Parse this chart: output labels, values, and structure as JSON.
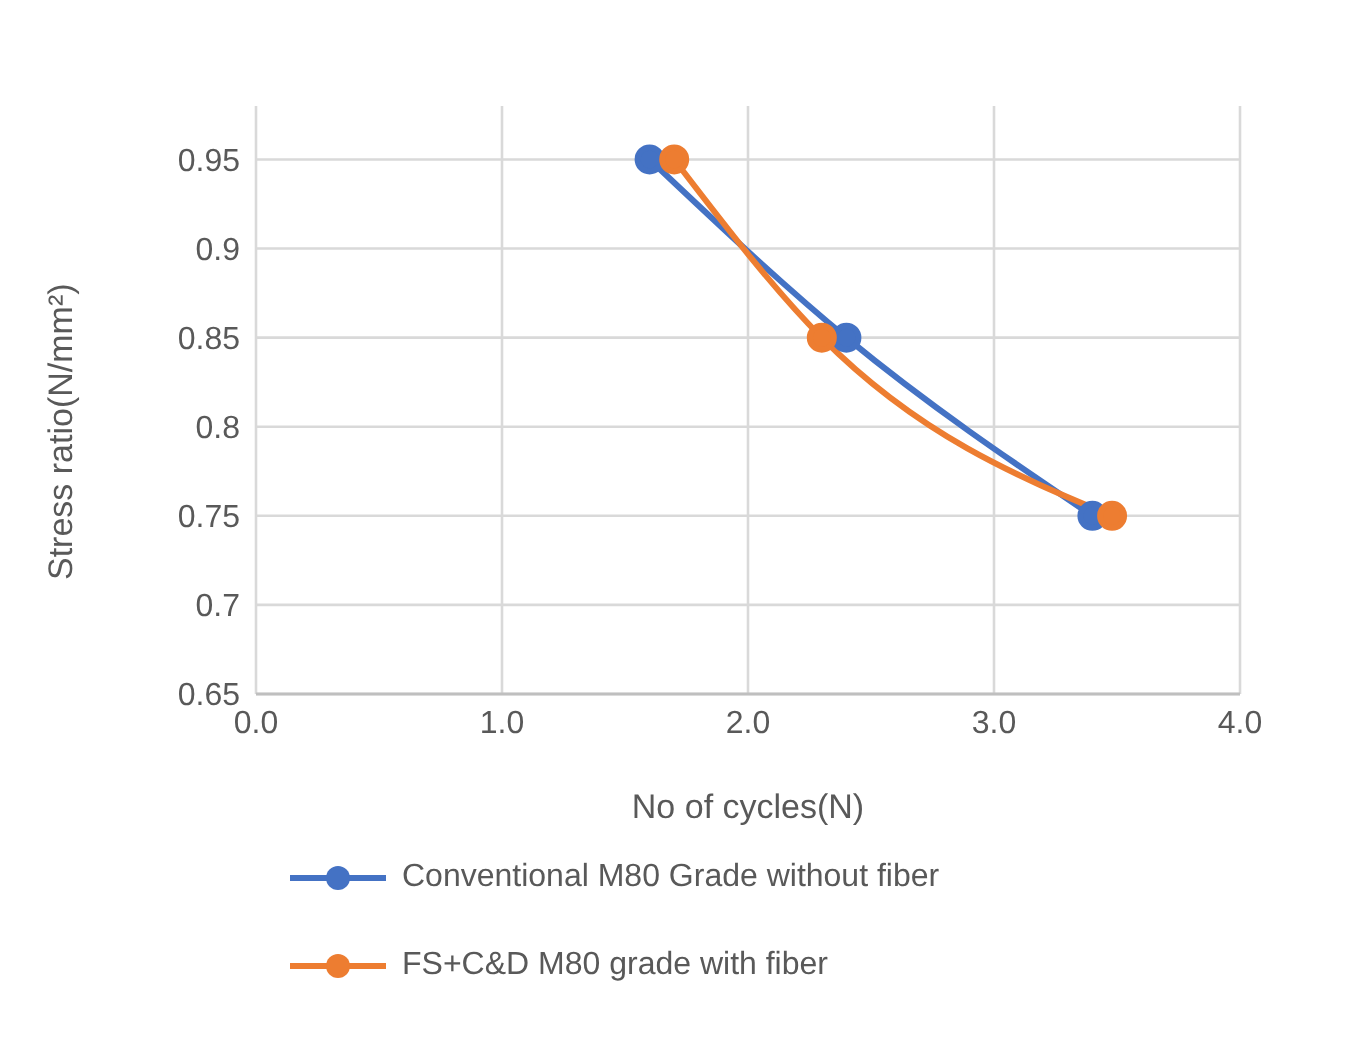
{
  "chart_data": {
    "type": "line",
    "xlabel": "No of cycles(N)",
    "ylabel": "Stress ratio(N/mm²)",
    "xlim": [
      0,
      4
    ],
    "xticks": [
      {
        "value": 0,
        "label": "0.0"
      },
      {
        "value": 1,
        "label": "1.0"
      },
      {
        "value": 2,
        "label": "2.0"
      },
      {
        "value": 3,
        "label": "3.0"
      },
      {
        "value": 4,
        "label": "4.0"
      }
    ],
    "ylim": [
      0.65,
      0.98
    ],
    "yticks": [
      0.65,
      0.7,
      0.75,
      0.8,
      0.85,
      0.9,
      0.95
    ],
    "grid": true,
    "legend": "bottom",
    "marker": "circle",
    "line_style": "solid",
    "series": [
      {
        "name": "Conventional M80 Grade without fiber",
        "color": "#4472c4",
        "x": [
          1.6,
          2.4,
          3.4
        ],
        "values": [
          0.95,
          0.85,
          0.75
        ]
      },
      {
        "name": "FS+C&D M80 grade with fiber",
        "color": "#ed7d31",
        "x": [
          1.7,
          2.3,
          3.48
        ],
        "values": [
          0.95,
          0.85,
          0.75
        ]
      }
    ]
  }
}
